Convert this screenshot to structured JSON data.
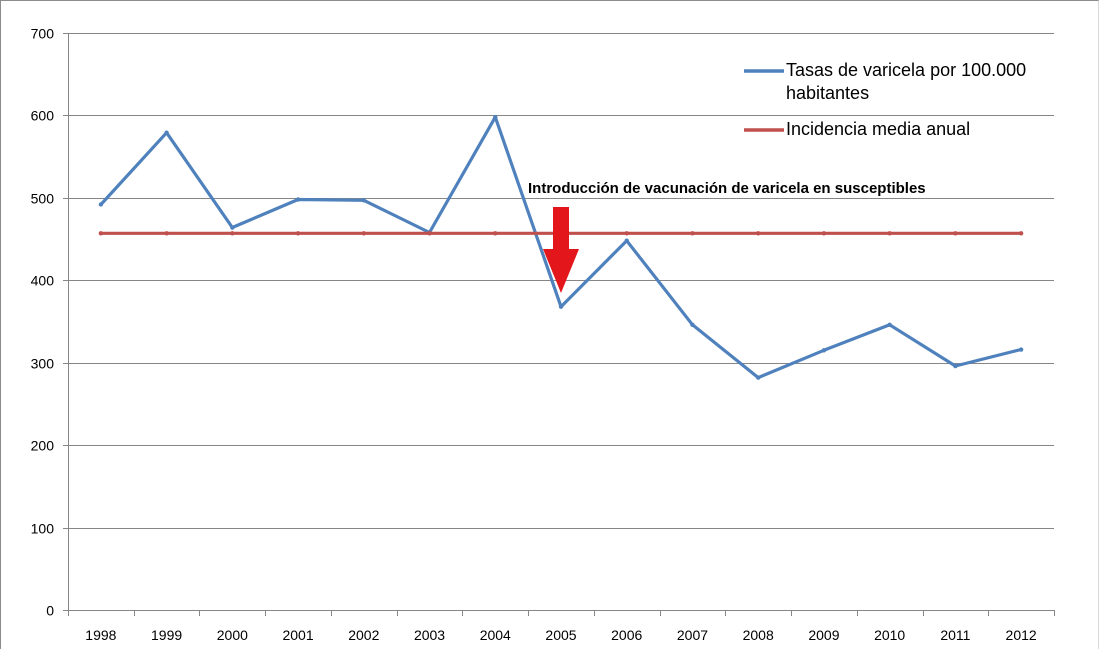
{
  "chart_data": {
    "type": "line",
    "title": "",
    "xlabel": "",
    "ylabel": "",
    "categories": [
      "1998",
      "1999",
      "2000",
      "2001",
      "2002",
      "2003",
      "2004",
      "2005",
      "2006",
      "2007",
      "2008",
      "2009",
      "2010",
      "2011",
      "2012"
    ],
    "ylim": [
      0,
      700
    ],
    "yticks": [
      "0",
      "100",
      "200",
      "300",
      "400",
      "500",
      "600",
      "700"
    ],
    "grid": true,
    "legend_position": "top-right",
    "series": [
      {
        "name": "Tasas de varicela por 100.000 habitantes",
        "name_lines": [
          "Tasas de varicela por 100.000",
          "habitantes"
        ],
        "color": "#4f81bd",
        "values": [
          492,
          579,
          464,
          498,
          497,
          458,
          598,
          368,
          448,
          346,
          282,
          315,
          346,
          296,
          316
        ]
      },
      {
        "name": "Incidencia media anual",
        "name_lines": [
          "Incidencia media anual"
        ],
        "color": "#c0504d",
        "values": [
          457,
          457,
          457,
          457,
          457,
          457,
          457,
          457,
          457,
          457,
          457,
          457,
          457,
          457,
          457
        ]
      }
    ],
    "annotation": {
      "text": "Introducción de vacunación de varicela en susceptibles",
      "at_category": "2005",
      "arrow_color": "#e3161b"
    }
  }
}
